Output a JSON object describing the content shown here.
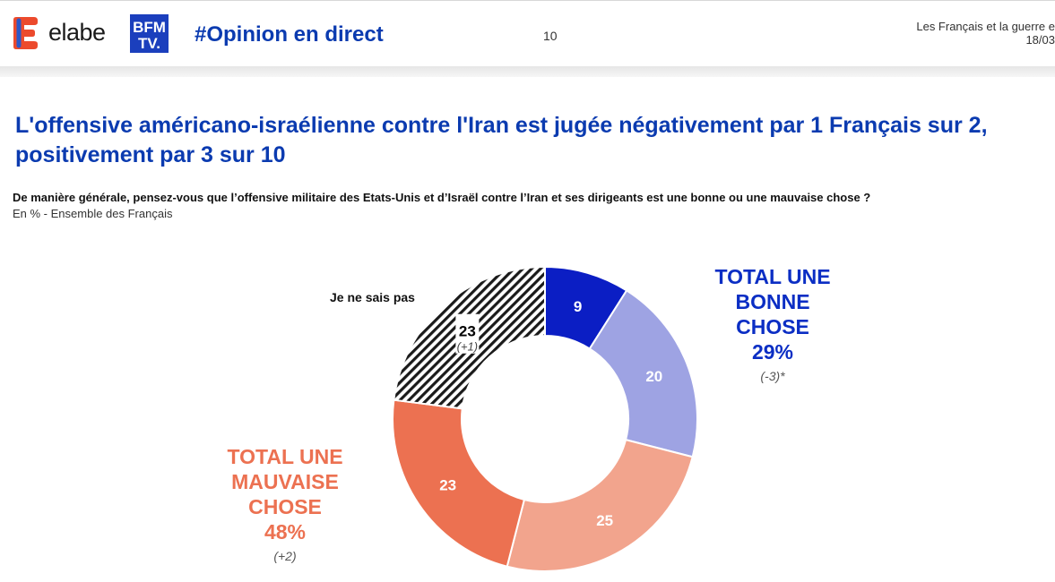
{
  "header": {
    "brand": "elabe",
    "partner_logo_text": [
      "BFM",
      "TV."
    ],
    "hashtag": "#Opinion en direct",
    "page_number": "10",
    "study_title": "Les Français et la guerre e",
    "date": "18/03"
  },
  "title": {
    "line1": "L'offensive américano-israélienne contre l'Iran est jugée négativement par 1 Français sur 2,",
    "line2": "positivement par 3 sur 10"
  },
  "question": "De manière générale, pensez-vous que l’offensive militaire des Etats-Unis et d’Israël contre l’Iran et ses dirigeants est une bonne ou une mauvaise chose ?",
  "base": "En % - Ensemble des Français",
  "groups": {
    "good": {
      "label_lines": [
        "TOTAL UNE",
        "BONNE",
        "CHOSE"
      ],
      "total": "29%",
      "evolution": "(-3)*"
    },
    "bad": {
      "label_lines": [
        "TOTAL UNE",
        "MAUVAISE",
        "CHOSE"
      ],
      "total": "48%",
      "evolution": "(+2)"
    },
    "dont_know_label": "Je ne sais pas"
  },
  "chart_data": {
    "type": "pie",
    "variant": "donut",
    "unit": "%",
    "start_angle": "12 o'clock, clockwise",
    "slices": [
      {
        "value": 9,
        "color": "#0b1ec4",
        "label_color": "#ffffff",
        "pattern": "solid",
        "evolution": ""
      },
      {
        "value": 20,
        "color": "#9ea3e3",
        "label_color": "#ffffff",
        "pattern": "solid",
        "evolution": ""
      },
      {
        "value": 25,
        "color": "#f2a48d",
        "label_color": "#ffffff",
        "pattern": "solid",
        "evolution": ""
      },
      {
        "value": 23,
        "color": "#ec7151",
        "label_color": "#ffffff",
        "pattern": "solid",
        "evolution": ""
      },
      {
        "value": 23,
        "color": "#1a1a1a",
        "label_color": "#000000",
        "pattern": "hatched",
        "evolution": "(+1)"
      }
    ]
  }
}
